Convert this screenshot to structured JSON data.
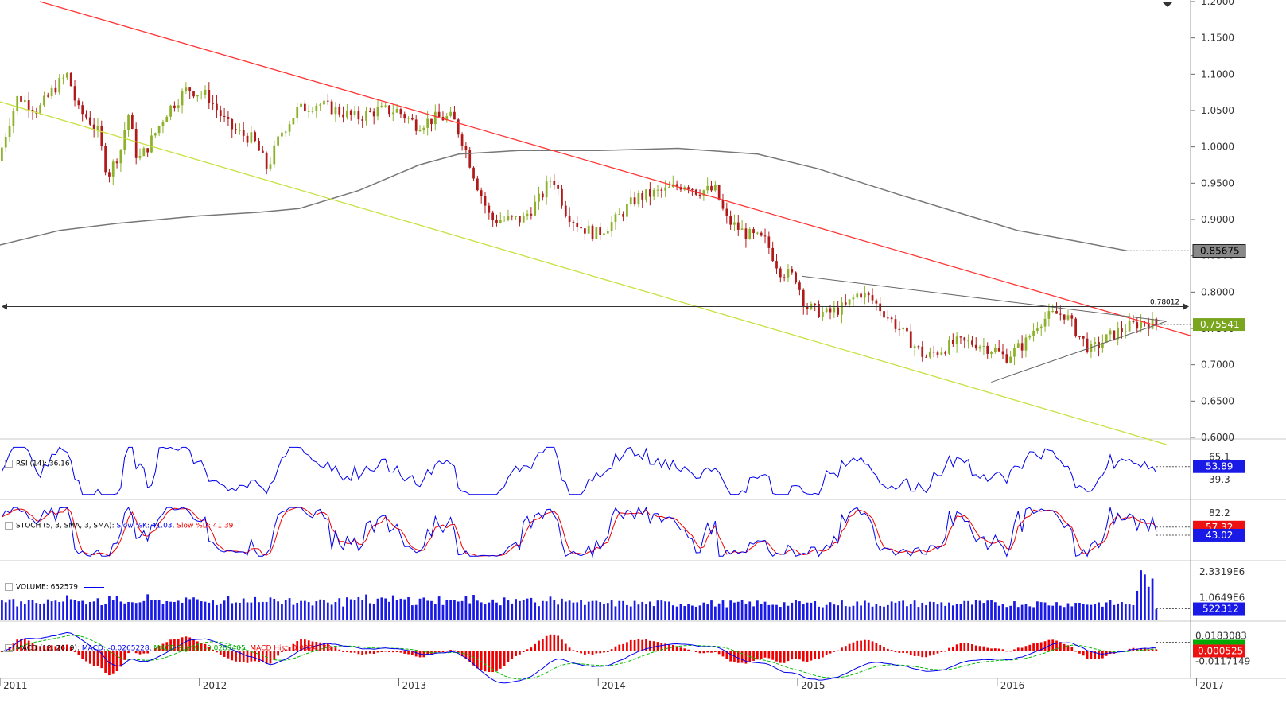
{
  "colors": {
    "bull": "#8db12a",
    "bear": "#b01a1a",
    "red_trend": "#ff3333",
    "yellow_trend": "#c8e040",
    "gray_ma": "#777777",
    "rsi": "#0000ee",
    "stoch_k": "#0000ee",
    "stoch_d": "#ee0000",
    "volume": "#1a1ae6",
    "macd": "#0000ee",
    "macd_signal": "#00bb00",
    "macd_hist": "#ee0000"
  },
  "panes": {
    "price": {
      "ticks": [
        "1.2000",
        "1.1500",
        "1.1000",
        "1.0500",
        "1.0000",
        "0.9500",
        "0.9000",
        "0.8500",
        "0.8000",
        "0.7500",
        "0.7000",
        "0.6500",
        "0.6000"
      ],
      "ma_tag": "0.85675",
      "last_tag": "0.75541",
      "hline_label": "0.78012"
    },
    "rsi": {
      "label": "RSI (14): 36.16",
      "ticks": [
        "65.1",
        "39.3"
      ],
      "tag": "53.89"
    },
    "stoch": {
      "label": "STOCH (5, 3, SMA, 3, SMA):",
      "k_label": "Slow %K: 41.03",
      "d_label": "Slow %D: 41.39",
      "ticks": [
        "82.2"
      ],
      "tag_d": "57.32",
      "tag_k": "43.02"
    },
    "volume": {
      "label": "VOLUME: 652579",
      "ticks": [
        "2.3319E6",
        "1.0649E6"
      ],
      "tag": "522312"
    },
    "macd": {
      "label": "MACD (12, 26, 9):",
      "macd_label": "MACD: -0.0265228,",
      "signal_label": "MACD Signal: -0.0289405,",
      "hist_label": "MACD Hist: 0.0024178",
      "ticks": [
        "0.0183083",
        "-0.0117149"
      ],
      "tag": "0.000525"
    }
  },
  "x_axis": [
    "2011",
    "2012",
    "2013",
    "2014",
    "2015",
    "2016",
    "2017"
  ],
  "chart_data": {
    "type": "candlestick",
    "title": "",
    "price_range": [
      0.6,
      1.2
    ],
    "anchors": [
      [
        2011.0,
        0.98
      ],
      [
        2011.05,
        1.03
      ],
      [
        2011.1,
        1.07
      ],
      [
        2011.2,
        1.05
      ],
      [
        2011.28,
        1.08
      ],
      [
        2011.35,
        1.1
      ],
      [
        2011.4,
        1.05
      ],
      [
        2011.45,
        1.04
      ],
      [
        2011.5,
        1.02
      ],
      [
        2011.55,
        0.96
      ],
      [
        2011.62,
        1.0
      ],
      [
        2011.65,
        1.05
      ],
      [
        2011.7,
        0.98
      ],
      [
        2011.75,
        1.0
      ],
      [
        2011.85,
        1.05
      ],
      [
        2011.95,
        1.08
      ],
      [
        2012.05,
        1.07
      ],
      [
        2012.15,
        1.03
      ],
      [
        2012.2,
        1.02
      ],
      [
        2012.28,
        1.01
      ],
      [
        2012.35,
        0.97
      ],
      [
        2012.42,
        1.02
      ],
      [
        2012.5,
        1.05
      ],
      [
        2012.6,
        1.06
      ],
      [
        2012.7,
        1.05
      ],
      [
        2012.8,
        1.04
      ],
      [
        2012.9,
        1.05
      ],
      [
        2013.0,
        1.05
      ],
      [
        2013.1,
        1.03
      ],
      [
        2013.2,
        1.04
      ],
      [
        2013.28,
        1.04
      ],
      [
        2013.34,
        1.0
      ],
      [
        2013.4,
        0.95
      ],
      [
        2013.47,
        0.9
      ],
      [
        2013.55,
        0.9
      ],
      [
        2013.63,
        0.9
      ],
      [
        2013.72,
        0.93
      ],
      [
        2013.78,
        0.96
      ],
      [
        2013.85,
        0.91
      ],
      [
        2013.92,
        0.89
      ],
      [
        2014.0,
        0.88
      ],
      [
        2014.1,
        0.9
      ],
      [
        2014.2,
        0.93
      ],
      [
        2014.35,
        0.94
      ],
      [
        2014.45,
        0.95
      ],
      [
        2014.5,
        0.94
      ],
      [
        2014.6,
        0.94
      ],
      [
        2014.65,
        0.9
      ],
      [
        2014.75,
        0.88
      ],
      [
        2014.85,
        0.87
      ],
      [
        2014.92,
        0.83
      ],
      [
        2015.0,
        0.82
      ],
      [
        2015.05,
        0.78
      ],
      [
        2015.15,
        0.77
      ],
      [
        2015.25,
        0.78
      ],
      [
        2015.32,
        0.8
      ],
      [
        2015.38,
        0.79
      ],
      [
        2015.45,
        0.77
      ],
      [
        2015.55,
        0.74
      ],
      [
        2015.65,
        0.71
      ],
      [
        2015.72,
        0.72
      ],
      [
        2015.8,
        0.73
      ],
      [
        2015.9,
        0.73
      ],
      [
        2016.0,
        0.72
      ],
      [
        2016.05,
        0.71
      ],
      [
        2016.15,
        0.73
      ],
      [
        2016.22,
        0.76
      ],
      [
        2016.3,
        0.77
      ],
      [
        2016.35,
        0.77
      ],
      [
        2016.42,
        0.74
      ],
      [
        2016.48,
        0.72
      ],
      [
        2016.58,
        0.74
      ],
      [
        2016.65,
        0.75
      ],
      [
        2016.75,
        0.76
      ],
      [
        2016.8,
        0.755
      ]
    ],
    "ma200": [
      [
        2011.0,
        0.865
      ],
      [
        2011.3,
        0.885
      ],
      [
        2011.6,
        0.895
      ],
      [
        2012.0,
        0.905
      ],
      [
        2012.3,
        0.91
      ],
      [
        2012.5,
        0.915
      ],
      [
        2012.8,
        0.94
      ],
      [
        2013.1,
        0.975
      ],
      [
        2013.3,
        0.99
      ],
      [
        2013.6,
        0.995
      ],
      [
        2014.0,
        0.995
      ],
      [
        2014.4,
        0.998
      ],
      [
        2014.8,
        0.99
      ],
      [
        2015.1,
        0.97
      ],
      [
        2015.5,
        0.935
      ],
      [
        2015.8,
        0.91
      ],
      [
        2016.1,
        0.885
      ],
      [
        2016.4,
        0.87
      ],
      [
        2016.65,
        0.857
      ]
    ],
    "trendlines": [
      {
        "from": [
          2011.2,
          1.2
        ],
        "to": [
          2016.97,
          0.74
        ]
      },
      {
        "from": [
          2011.0,
          1.062
        ],
        "to": [
          2016.85,
          0.59
        ]
      },
      {
        "from": [
          2015.02,
          0.822
        ],
        "to": [
          2016.85,
          0.76
        ]
      },
      {
        "from": [
          2015.97,
          0.676
        ],
        "to": [
          2016.85,
          0.76
        ]
      }
    ],
    "hline": {
      "value": 0.78012
    },
    "last_price": 0.75541,
    "ma_value": 0.85675
  }
}
